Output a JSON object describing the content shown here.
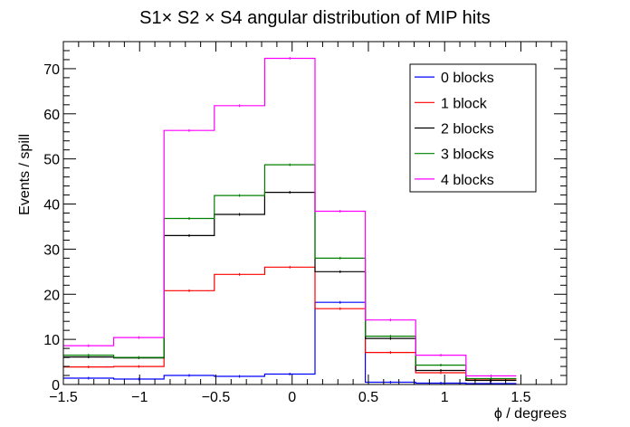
{
  "chart_data": {
    "type": "line",
    "title": "S1× S2 × S4 angular distribution of MIP hits",
    "xlabel": "ϕ / degrees",
    "ylabel": "Events / spill",
    "xlim": [
      -1.5,
      1.8
    ],
    "ylim": [
      0,
      76
    ],
    "x_ticks": [
      -1.5,
      -1,
      -0.5,
      0,
      0.5,
      1,
      1.5
    ],
    "x_tick_labels": [
      "−1.5",
      "−1",
      "−0.5",
      "0",
      "0.5",
      "1",
      "1.5"
    ],
    "y_ticks": [
      0,
      10,
      20,
      30,
      40,
      50,
      60,
      70
    ],
    "y_tick_labels": [
      "0",
      "10",
      "20",
      "30",
      "40",
      "50",
      "60",
      "70"
    ],
    "bin_edges": [
      -1.5,
      -1.17,
      -0.84,
      -0.51,
      -0.18,
      0.15,
      0.48,
      0.81,
      1.14,
      1.47
    ],
    "legend_position": "top-right",
    "grid": false,
    "series": [
      {
        "name": "0 blocks",
        "color": "#0000ff",
        "values": [
          1.4,
          1.2,
          2.0,
          1.8,
          2.3,
          18.2,
          0.5,
          0.3,
          0.2
        ]
      },
      {
        "name": "1 block",
        "color": "#ff0000",
        "values": [
          3.9,
          4.0,
          20.8,
          24.4,
          26.0,
          16.8,
          7.1,
          2.6,
          1.0
        ]
      },
      {
        "name": "2 blocks",
        "color": "#000000",
        "values": [
          6.1,
          5.9,
          33.0,
          37.7,
          42.6,
          25.0,
          10.2,
          3.1,
          0.9
        ]
      },
      {
        "name": "3 blocks",
        "color": "#008000",
        "values": [
          6.5,
          6.0,
          36.8,
          41.9,
          48.7,
          28.0,
          10.7,
          4.3,
          1.3
        ]
      },
      {
        "name": "4 blocks",
        "color": "#ff00ff",
        "values": [
          8.6,
          10.4,
          56.3,
          61.8,
          72.3,
          38.4,
          14.3,
          6.5,
          1.9
        ]
      }
    ]
  }
}
